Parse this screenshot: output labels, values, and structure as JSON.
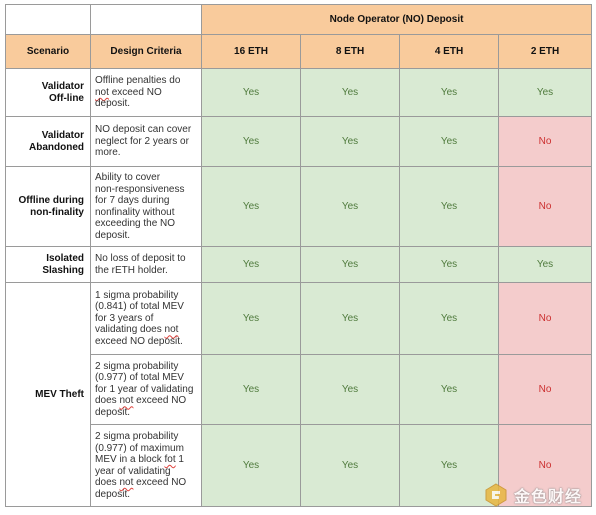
{
  "header": {
    "group_title": "Node Operator (NO) Deposit",
    "col_scenario": "Scenario",
    "col_criteria": "Design Criteria",
    "deposits": [
      "16 ETH",
      "8 ETH",
      "4 ETH",
      "2 ETH"
    ]
  },
  "rows": [
    {
      "scenario": [
        "Validator",
        "Off-line"
      ],
      "criteria": [
        "Offline penalties do",
        "not exceed NO",
        "deposit."
      ],
      "cells": [
        "Yes",
        "Yes",
        "Yes",
        "Yes"
      ]
    },
    {
      "scenario": [
        "Validator",
        "Abandoned"
      ],
      "criteria": [
        "NO deposit can cover",
        "neglect for 2 years or",
        "more."
      ],
      "cells": [
        "Yes",
        "Yes",
        "Yes",
        "No"
      ]
    },
    {
      "scenario": [
        "Offline during",
        "non-finality"
      ],
      "criteria": [
        "Ability to cover",
        "non-responsiveness",
        "for 7 days during",
        "nonfinality without",
        "exceeding the NO",
        "deposit."
      ],
      "cells": [
        "Yes",
        "Yes",
        "Yes",
        "No"
      ]
    },
    {
      "scenario": [
        "Isolated",
        "Slashing"
      ],
      "criteria": [
        "No loss of deposit to",
        "the rETH holder."
      ],
      "cells": [
        "Yes",
        "Yes",
        "Yes",
        "Yes"
      ]
    }
  ],
  "mev": {
    "scenario": "MEV Theft",
    "subrows": [
      {
        "criteria": [
          "1 sigma probability",
          "(0.841) of total MEV",
          "for 3 years of",
          "validating does not",
          "exceed NO deposit."
        ],
        "cells": [
          "Yes",
          "Yes",
          "Yes",
          "No"
        ]
      },
      {
        "criteria": [
          "2 sigma probability",
          "(0.977) of total MEV",
          "for 1 year of validating",
          "does not exceed NO",
          "deposit."
        ],
        "cells": [
          "Yes",
          "Yes",
          "Yes",
          "No"
        ]
      },
      {
        "criteria": [
          "2 sigma probability",
          "(0.977) of maximum",
          "MEV in a block fot 1",
          "year of validating",
          "does not exceed NO",
          "deposit."
        ],
        "cells": [
          "Yes",
          "Yes",
          "Yes",
          "No"
        ]
      }
    ]
  },
  "watermark": {
    "text": "金色财经",
    "icon": "golden-logo-icon"
  }
}
